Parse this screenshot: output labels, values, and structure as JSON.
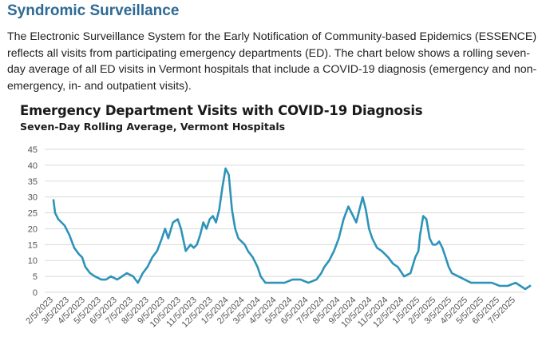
{
  "header": {
    "title": "Syndromic Surveillance",
    "description": "The Electronic Surveillance System for the Early Notification of Community-based Epidemics (ESSENCE) reflects all visits from participating emergency departments (ED). The chart below shows a rolling seven-day average of all ED visits in Vermont hospitals that include a COVID-19 diagnosis (emergency and non-emergency, in- and outpatient visits)."
  },
  "colors": {
    "heading": "#2d6a94",
    "line": "#2e93b8",
    "grid": "#d9d9d9"
  },
  "chart_data": {
    "type": "line",
    "title": "Emergency Department Visits with COVID-19 Diagnosis",
    "subtitle": "Seven-Day Rolling Average, Vermont Hospitals",
    "xlabel": "",
    "ylabel": "",
    "ylim": [
      0,
      45
    ],
    "yticks": [
      "0",
      "5",
      "10",
      "15",
      "20",
      "25",
      "30",
      "35",
      "40",
      "45"
    ],
    "grid": true,
    "categories": [
      "2/5/2023",
      "3/5/2023",
      "4/5/2023",
      "5/5/2023",
      "6/5/2023",
      "7/5/2023",
      "8/5/2023",
      "9/5/2023",
      "10/5/2023",
      "11/5/2023",
      "12/5/2023",
      "1/5/2024",
      "2/5/2024",
      "3/5/2024",
      "4/5/2024",
      "5/5/2024",
      "6/5/2024",
      "7/5/2024",
      "8/5/2024",
      "9/5/2024",
      "10/5/2024",
      "11/5/2024",
      "12/5/2024",
      "1/5/2025",
      "2/5/2025",
      "3/5/2025",
      "4/5/2025",
      "5/5/2025",
      "6/5/2025",
      "7/5/2025"
    ],
    "series": [
      {
        "x": [
          0,
          0.1,
          0.3,
          0.5,
          0.7,
          1.0,
          1.3,
          1.6,
          1.8,
          2.0,
          2.3,
          2.6,
          3.0,
          3.3,
          3.6,
          4.0,
          4.3,
          4.6,
          5.0,
          5.3,
          5.6,
          5.9,
          6.2,
          6.5,
          6.8,
          7.0,
          7.2,
          7.5,
          7.8,
          8.0,
          8.3,
          8.6,
          8.8,
          9.0,
          9.2,
          9.4,
          9.6,
          9.8,
          10.0,
          10.2,
          10.4,
          10.6,
          10.8,
          11.0,
          11.2,
          11.4,
          11.6,
          11.8,
          12.0,
          12.2,
          12.5,
          12.8,
          13.0,
          13.3,
          13.6,
          14.0,
          14.5,
          15.0,
          15.5,
          16.0,
          16.5,
          16.8,
          17.0,
          17.3,
          17.6,
          17.9,
          18.2,
          18.5,
          18.8,
          19.0,
          19.2,
          19.4,
          19.6,
          19.8,
          20.0,
          20.3,
          20.6,
          21.0,
          21.3,
          21.6,
          22.0,
          22.4,
          22.7,
          22.9,
          23.0,
          23.2,
          23.4,
          23.6,
          23.8,
          24.0,
          24.2,
          24.4,
          24.6,
          24.8,
          25.0,
          25.4,
          25.8,
          26.2,
          26.6,
          27.0,
          27.5,
          28.0,
          28.5,
          29.0,
          29.3,
          29.6,
          29.9
        ],
        "values": [
          29,
          25,
          23,
          22,
          21,
          18,
          14,
          12,
          11,
          8,
          6,
          5,
          4,
          4,
          5,
          4,
          5,
          6,
          5,
          3,
          6,
          8,
          11,
          13,
          17,
          20,
          17,
          22,
          23,
          20,
          13,
          15,
          14,
          15,
          18,
          22,
          20,
          23,
          24,
          22,
          26,
          33,
          39,
          37,
          26,
          20,
          17,
          16,
          15,
          13,
          11,
          8,
          5,
          3,
          3,
          3,
          3,
          4,
          4,
          3,
          4,
          6,
          8,
          10,
          13,
          17,
          23,
          27,
          24,
          22,
          26,
          30,
          26,
          20,
          17,
          14,
          13,
          11,
          9,
          8,
          5,
          6,
          11,
          13,
          18,
          24,
          23,
          17,
          15,
          15,
          16,
          14,
          11,
          8,
          6,
          5,
          4,
          3,
          3,
          3,
          3,
          2,
          2,
          3,
          2,
          1,
          2
        ]
      }
    ]
  }
}
